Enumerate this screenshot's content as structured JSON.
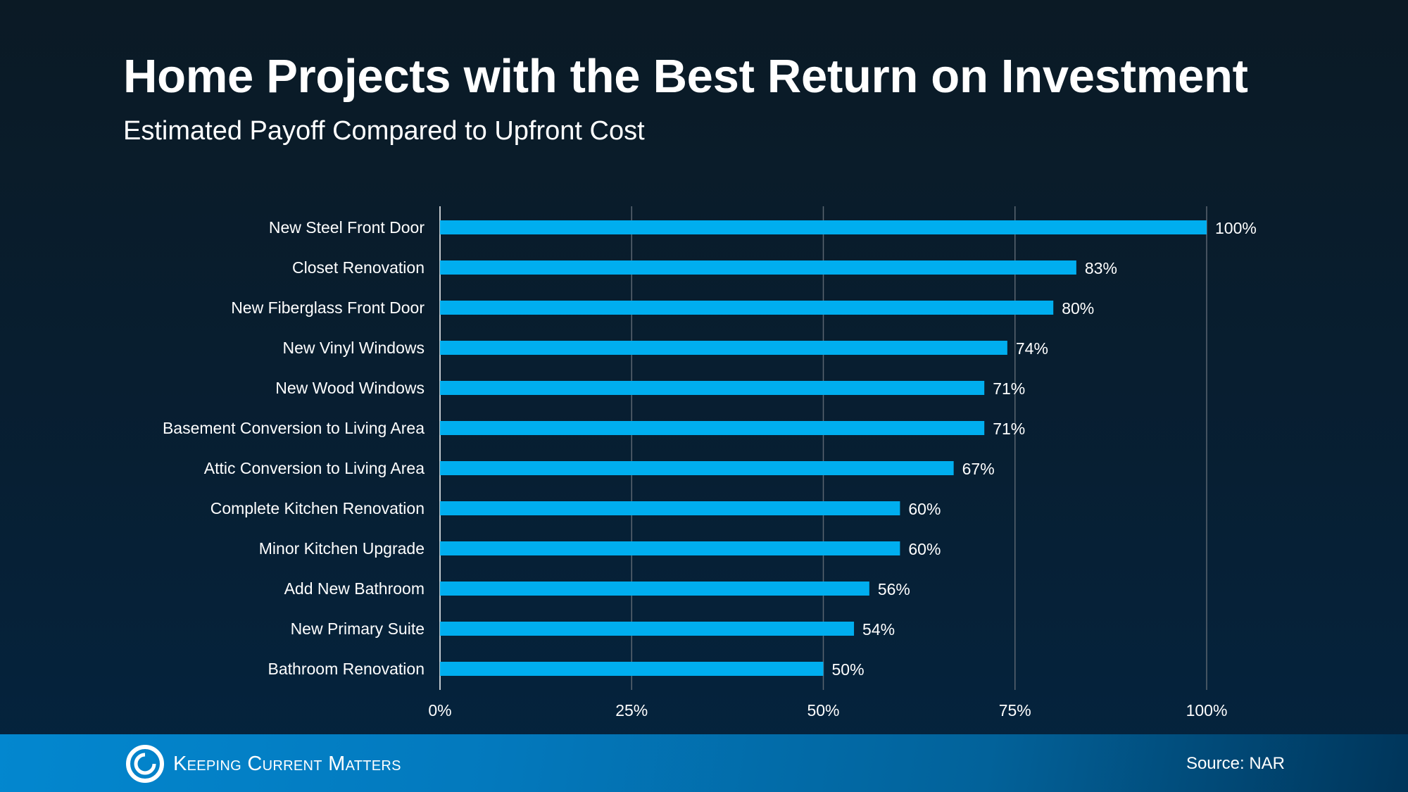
{
  "chart_data": {
    "type": "bar",
    "orientation": "horizontal",
    "title": "Home Projects with the Best Return on Investment",
    "subtitle": "Estimated Payoff Compared to Upfront Cost",
    "categories": [
      "New Steel Front Door",
      "Closet Renovation",
      "New Fiberglass Front Door",
      "New Vinyl Windows",
      "New Wood Windows",
      "Basement Conversion to Living Area",
      "Attic Conversion to Living Area",
      "Complete Kitchen Renovation",
      "Minor Kitchen Upgrade",
      "Add New Bathroom",
      "New Primary Suite",
      "Bathroom Renovation"
    ],
    "values": [
      100,
      83,
      80,
      74,
      71,
      71,
      67,
      60,
      60,
      56,
      54,
      50
    ],
    "data_labels": [
      "100%",
      "83%",
      "80%",
      "74%",
      "71%",
      "71%",
      "67%",
      "60%",
      "60%",
      "56%",
      "54%",
      "50%"
    ],
    "xlim": [
      0,
      100
    ],
    "xticks": [
      0,
      25,
      50,
      75,
      100
    ],
    "xtick_labels": [
      "0%",
      "25%",
      "50%",
      "75%",
      "100%"
    ],
    "grid": "vertical",
    "bar_color": "#00aeef"
  },
  "footer": {
    "logo_text": "Keeping Current Matters",
    "source": "Source: NAR"
  }
}
